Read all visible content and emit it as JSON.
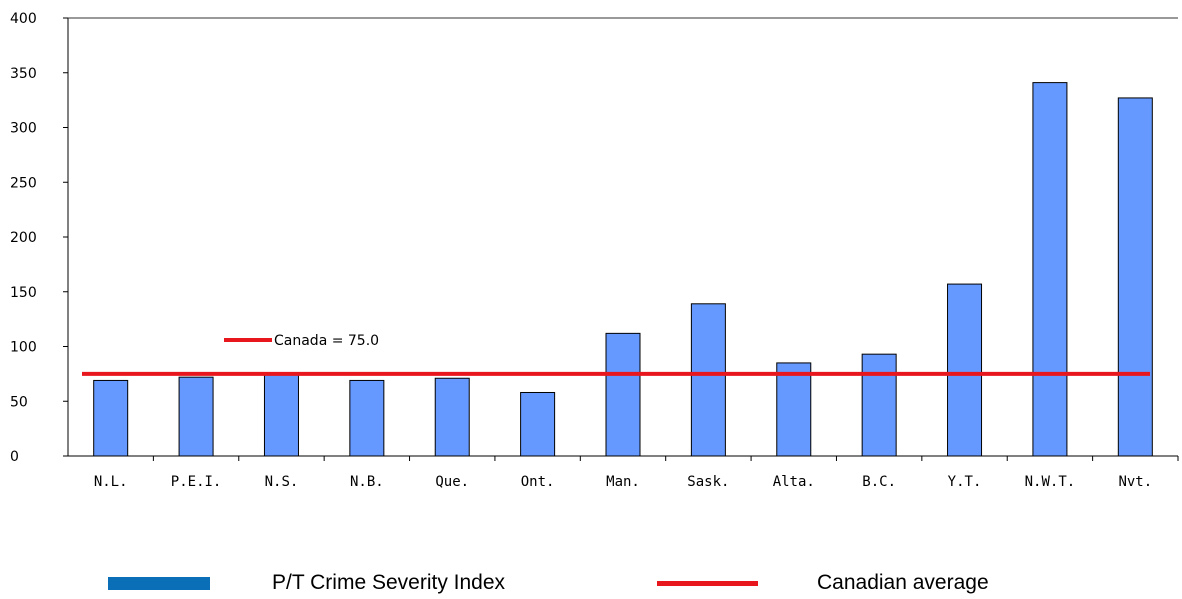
{
  "chart_data": {
    "type": "bar",
    "categories": [
      "N.L.",
      "P.E.I.",
      "N.S.",
      "N.B.",
      "Que.",
      "Ont.",
      "Man.",
      "Sask.",
      "Alta.",
      "B.C.",
      "Y.T.",
      "N.W.T.",
      "Nvt."
    ],
    "series": [
      {
        "name": "P/T Crime Severity Index",
        "values": [
          69,
          72,
          76,
          69,
          71,
          58,
          112,
          139,
          85,
          93,
          157,
          341,
          327
        ]
      }
    ],
    "reference_line": {
      "name": "Canadian average",
      "value": 75.0,
      "label": "Canada = 75.0"
    },
    "ylim": [
      0,
      400
    ],
    "yticks": [
      0,
      50,
      100,
      150,
      200,
      250,
      300,
      350,
      400
    ],
    "title": "",
    "xlabel": "",
    "ylabel": "",
    "grid": false,
    "legend_position": "bottom",
    "colors": {
      "bar_fill": "#6699ff",
      "bar_stroke": "#000000",
      "reference_line": "#e8161d",
      "legend_bar": "#0b6fb8",
      "axis": "#000000"
    }
  },
  "legend": {
    "bar_label": "P/T Crime Severity Index",
    "line_label": "Canadian average"
  }
}
